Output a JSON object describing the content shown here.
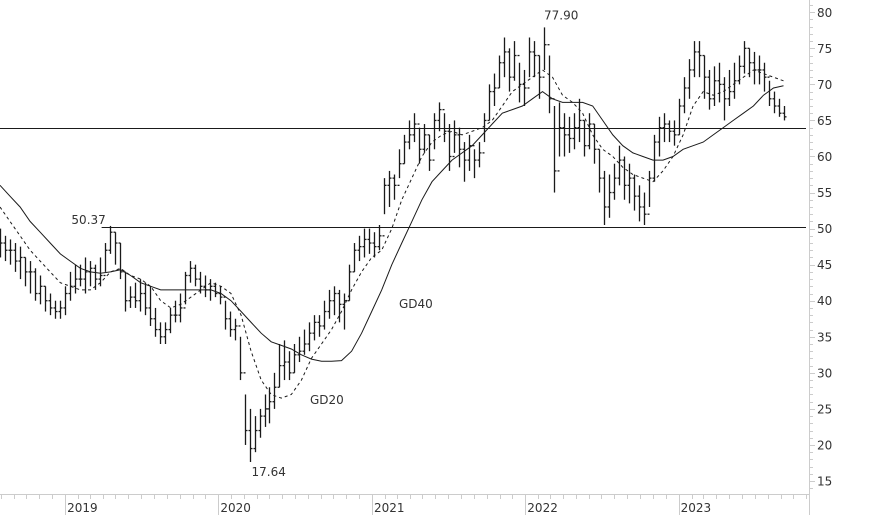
{
  "chart_data": {
    "type": "ohlc",
    "bar_format": [
      "high",
      "low",
      "close"
    ],
    "x_range": [
      "2018-07-30",
      "2023-11-10"
    ],
    "bars_date_range": [
      "2018-07-30",
      "2023-09-08"
    ],
    "ylim": [
      13.2,
      81.7
    ],
    "y_ticks": [
      15,
      20,
      25,
      30,
      35,
      40,
      45,
      50,
      55,
      60,
      65,
      70,
      75,
      80
    ],
    "x_ticks": [
      {
        "label": "2019",
        "date": "2019-01-01"
      },
      {
        "label": "2020",
        "date": "2020-01-01"
      },
      {
        "label": "2021",
        "date": "2021-01-01"
      },
      {
        "label": "2022",
        "date": "2022-01-01"
      },
      {
        "label": "2023",
        "date": "2023-01-01"
      }
    ],
    "grid": false,
    "colors": {
      "bars": "#1a1a1a",
      "lines": "#1a1a1a",
      "axis": "#cccccc",
      "text": "#333333"
    },
    "bars": [
      [
        50,
        46,
        48
      ],
      [
        49,
        45.5,
        47
      ],
      [
        48.5,
        45,
        47
      ],
      [
        48,
        44,
        45.5
      ],
      [
        47.5,
        43,
        46
      ],
      [
        46,
        42,
        44
      ],
      [
        45.5,
        41,
        44
      ],
      [
        44.5,
        40,
        41
      ],
      [
        43.5,
        39.5,
        42
      ],
      [
        42,
        38.5,
        40
      ],
      [
        41,
        38,
        39
      ],
      [
        40,
        37.5,
        38.5
      ],
      [
        40,
        37.5,
        39
      ],
      [
        42,
        38,
        41
      ],
      [
        44,
        40,
        42
      ],
      [
        45,
        41,
        43
      ],
      [
        45,
        42,
        43
      ],
      [
        46,
        41,
        44
      ],
      [
        45.5,
        42,
        44.5
      ],
      [
        45,
        41.5,
        43
      ],
      [
        46,
        42,
        43.5
      ],
      [
        48,
        44,
        47
      ],
      [
        50.37,
        46.5,
        49.5
      ],
      [
        49.5,
        45,
        48
      ],
      [
        48,
        43,
        44
      ],
      [
        44,
        38.5,
        40
      ],
      [
        42,
        39,
        40.5
      ],
      [
        42.5,
        39,
        40
      ],
      [
        43,
        38.5,
        41
      ],
      [
        42.5,
        38,
        39
      ],
      [
        42,
        36.5,
        37.5
      ],
      [
        39,
        35,
        36
      ],
      [
        37,
        34,
        35
      ],
      [
        37,
        34,
        36
      ],
      [
        39,
        35.5,
        38
      ],
      [
        40,
        37,
        38
      ],
      [
        41,
        37,
        39
      ],
      [
        44,
        39.5,
        43.5
      ],
      [
        45.5,
        42.5,
        44.5
      ],
      [
        45,
        42,
        43
      ],
      [
        44,
        41,
        42
      ],
      [
        43.5,
        40.5,
        41.5
      ],
      [
        43,
        40,
        42
      ],
      [
        42.5,
        40.5,
        41
      ],
      [
        42,
        39.5,
        40.5
      ],
      [
        40,
        36,
        37.5
      ],
      [
        38.5,
        35,
        36
      ],
      [
        37.5,
        34.5,
        36.5
      ],
      [
        35,
        29,
        30
      ],
      [
        27,
        20,
        22
      ],
      [
        25,
        17.64,
        19.5
      ],
      [
        24,
        19,
        22
      ],
      [
        25,
        21,
        24
      ],
      [
        27,
        22.5,
        25
      ],
      [
        28,
        23,
        26
      ],
      [
        30,
        25,
        28
      ],
      [
        34,
        28,
        31
      ],
      [
        34.5,
        29,
        31.5
      ],
      [
        33,
        29,
        30
      ],
      [
        34,
        30,
        32.5
      ],
      [
        35,
        31.5,
        33
      ],
      [
        36,
        32.5,
        34
      ],
      [
        37,
        33,
        35.5
      ],
      [
        38,
        34.5,
        37
      ],
      [
        38,
        35,
        36.5
      ],
      [
        40,
        36,
        38.5
      ],
      [
        41.5,
        37.5,
        40
      ],
      [
        42,
        38,
        41
      ],
      [
        41.5,
        37,
        39.5
      ],
      [
        41,
        36,
        40
      ],
      [
        45,
        40,
        44
      ],
      [
        48,
        44,
        47
      ],
      [
        49,
        45.5,
        47.5
      ],
      [
        50,
        46,
        48.5
      ],
      [
        50,
        46.5,
        48
      ],
      [
        49.5,
        46,
        47.5
      ],
      [
        50.5,
        47,
        49
      ],
      [
        57,
        52,
        56
      ],
      [
        58,
        53,
        57
      ],
      [
        57.5,
        54,
        56
      ],
      [
        61,
        57,
        59
      ],
      [
        63,
        59,
        62
      ],
      [
        65,
        61,
        63
      ],
      [
        66,
        62,
        64.5
      ],
      [
        64,
        59,
        61
      ],
      [
        64.5,
        60.5,
        63
      ],
      [
        63,
        58,
        59.5
      ],
      [
        66,
        61,
        65
      ],
      [
        67.5,
        63.5,
        66.5
      ],
      [
        66,
        62,
        63.5
      ],
      [
        64.5,
        58,
        60
      ],
      [
        65,
        60.5,
        63
      ],
      [
        64,
        58.5,
        61
      ],
      [
        62,
        56.5,
        59.5
      ],
      [
        63,
        58,
        61.5
      ],
      [
        61,
        57,
        59.5
      ],
      [
        62,
        58.5,
        60.5
      ],
      [
        66,
        62,
        65
      ],
      [
        70,
        65,
        69
      ],
      [
        71.5,
        67,
        69.5
      ],
      [
        74,
        69.5,
        73
      ],
      [
        76.5,
        71,
        74.5
      ],
      [
        75,
        69,
        71
      ],
      [
        76,
        70.5,
        74
      ],
      [
        73,
        67.5,
        70
      ],
      [
        72,
        67,
        69.5
      ],
      [
        76.5,
        71,
        74.5
      ],
      [
        76,
        71,
        74
      ],
      [
        74,
        68,
        71
      ],
      [
        77.9,
        72,
        75.5
      ],
      [
        74,
        66,
        68
      ],
      [
        67,
        55,
        58
      ],
      [
        67.5,
        60,
        64
      ],
      [
        66,
        60,
        63
      ],
      [
        65.5,
        60.5,
        62.5
      ],
      [
        66,
        61,
        64
      ],
      [
        68,
        62,
        65
      ],
      [
        65,
        60,
        61.5
      ],
      [
        66,
        61,
        64.5
      ],
      [
        64.5,
        59,
        61
      ],
      [
        61,
        55,
        57
      ],
      [
        58,
        50.5,
        53
      ],
      [
        57.5,
        51.5,
        55
      ],
      [
        59,
        54,
        57
      ],
      [
        61.5,
        56,
        59.5
      ],
      [
        60,
        54,
        56
      ],
      [
        59,
        53.5,
        57
      ],
      [
        57.5,
        52.5,
        54.5
      ],
      [
        56,
        51,
        53
      ],
      [
        55,
        50.5,
        52
      ],
      [
        58,
        53,
        57
      ],
      [
        63,
        56.5,
        62
      ],
      [
        65.5,
        60,
        64
      ],
      [
        66,
        62,
        64.5
      ],
      [
        65,
        62,
        63.5
      ],
      [
        65,
        61.5,
        63
      ],
      [
        68,
        63,
        67
      ],
      [
        71,
        66,
        69.5
      ],
      [
        73.5,
        68,
        72
      ],
      [
        76,
        71,
        74.5
      ],
      [
        76,
        71,
        74
      ],
      [
        74,
        68,
        71
      ],
      [
        72,
        66.5,
        68
      ],
      [
        72.5,
        67,
        70.5
      ],
      [
        73,
        67.5,
        70
      ],
      [
        71,
        65,
        68
      ],
      [
        72,
        67,
        69
      ],
      [
        73,
        68,
        70.5
      ],
      [
        74,
        70,
        72.5
      ],
      [
        76,
        71.5,
        75
      ],
      [
        75,
        71,
        73
      ],
      [
        74.5,
        70,
        72
      ],
      [
        74,
        70,
        72
      ],
      [
        73,
        69,
        71
      ],
      [
        70.5,
        67,
        68
      ],
      [
        69,
        66,
        67
      ],
      [
        68,
        65.5,
        66
      ],
      [
        67,
        65,
        65.5
      ]
    ],
    "moving_averages": [
      {
        "name": "GD20",
        "style": "dashed",
        "values": [
          53,
          51,
          49,
          47,
          45.5,
          44,
          42.5,
          42,
          41.5,
          41.5,
          42.5,
          44,
          44.5,
          43.5,
          43,
          42,
          40,
          39,
          39.5,
          40.5,
          41.5,
          42.5,
          42,
          41,
          38,
          33,
          29,
          27,
          26.5,
          27,
          29,
          32,
          34,
          36,
          38.5,
          41.5,
          44,
          46,
          47,
          50,
          54,
          57,
          60,
          62,
          63,
          63.5,
          63,
          63.5,
          64,
          65,
          67,
          69,
          70,
          71,
          72,
          71,
          68.5,
          67.5,
          66,
          63,
          61,
          60,
          58.5,
          57.5,
          57,
          56.5,
          58,
          60,
          63,
          67,
          69,
          68.5,
          69,
          70,
          71,
          72,
          71.5,
          71,
          70.5
        ]
      },
      {
        "name": "GD40",
        "style": "solid",
        "values": [
          56,
          54.5,
          53,
          51,
          49.5,
          48,
          46.5,
          45.5,
          44.5,
          44,
          43.8,
          44,
          44.3,
          43.5,
          42.5,
          42,
          41.5,
          41.5,
          41.5,
          41.5,
          41.5,
          41.5,
          41,
          40,
          38.5,
          37,
          35.5,
          34.3,
          33.8,
          33.3,
          32.5,
          31.9,
          31.6,
          31.6,
          31.7,
          33,
          35.5,
          38.5,
          41.5,
          45,
          48,
          51,
          54,
          56.5,
          58,
          59.5,
          60.5,
          61.5,
          63,
          64.5,
          66,
          66.5,
          67,
          68,
          69,
          68,
          67.5,
          67.5,
          67.5,
          67,
          65,
          63,
          61.5,
          60.5,
          60,
          59.5,
          59.5,
          60,
          61,
          61.5,
          62,
          63,
          64,
          65,
          66,
          67,
          68.5,
          69.5,
          69.8
        ]
      }
    ],
    "horizontal_lines": [
      {
        "value": 64,
        "from_date": "2018-07-30"
      },
      {
        "value": 50.25,
        "from_date": "2019-03-29"
      }
    ],
    "annotations": [
      {
        "text": "50.37",
        "bar_index": 22,
        "position": "top-left"
      },
      {
        "text": "77.90",
        "bar_index": 109,
        "position": "top"
      },
      {
        "text": "17.64",
        "bar_index": 50,
        "position": "bottom"
      }
    ]
  }
}
